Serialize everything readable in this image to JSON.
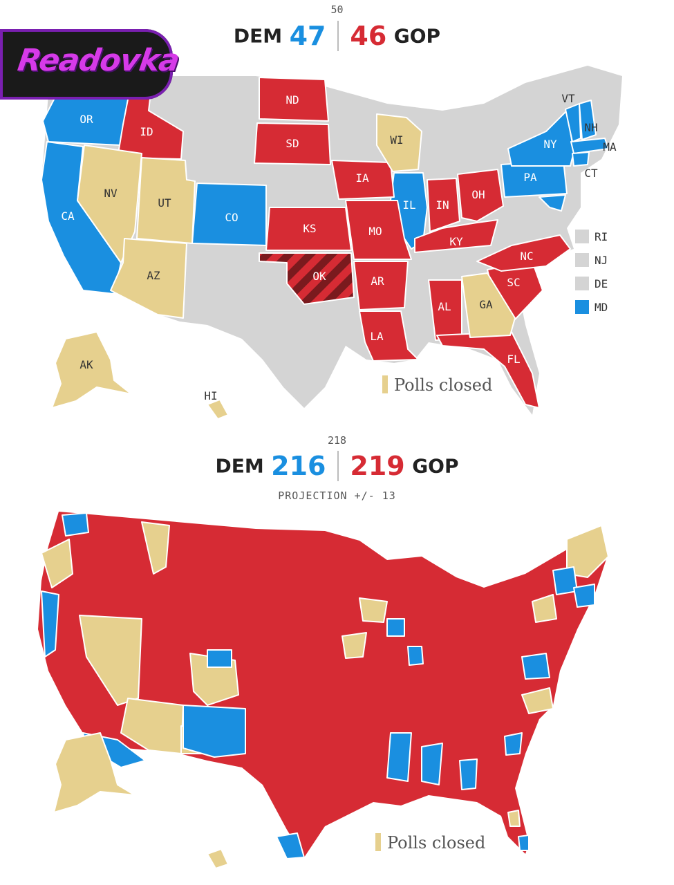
{
  "senate": {
    "threshold": "50",
    "dem_label": "DEM",
    "dem_value": "47",
    "gop_value": "46",
    "gop_label": "GOP",
    "legend": "Polls closed",
    "small_state_legend": [
      {
        "label": "RI",
        "status": "none"
      },
      {
        "label": "NJ",
        "status": "none"
      },
      {
        "label": "DE",
        "status": "none"
      },
      {
        "label": "MD",
        "status": "dem"
      }
    ],
    "state_labels": {
      "OR": "OR",
      "CA": "CA",
      "ID": "ID",
      "NV": "NV",
      "UT": "UT",
      "AZ": "AZ",
      "CO": "CO",
      "ND": "ND",
      "SD": "SD",
      "KS": "KS",
      "OK": "OK",
      "IA": "IA",
      "MO": "MO",
      "AR": "AR",
      "LA": "LA",
      "WI": "WI",
      "IL": "IL",
      "IN": "IN",
      "OH": "OH",
      "KY": "KY",
      "AL": "AL",
      "GA": "GA",
      "FL": "FL",
      "SC": "SC",
      "NC": "NC",
      "PA": "PA",
      "NY": "NY",
      "VT": "VT",
      "NH": "NH",
      "MA": "MA",
      "CT": "CT",
      "AK": "AK",
      "HI": "HI"
    }
  },
  "house": {
    "threshold": "218",
    "dem_label": "DEM",
    "dem_value": "216",
    "gop_value": "219",
    "gop_label": "GOP",
    "projection": "PROJECTION +/- 13",
    "legend": "Polls closed"
  },
  "logo": {
    "text": "Readovka"
  },
  "colors": {
    "dem": "#1a8fe0",
    "gop": "#d62b34",
    "polls_closed": "#e6d08e",
    "no_race": "#d4d4d4",
    "gop_dark": "#7a1a1e"
  }
}
